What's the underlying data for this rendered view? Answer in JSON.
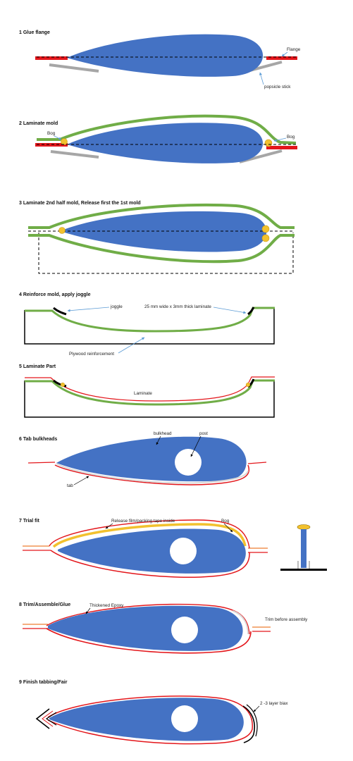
{
  "colors": {
    "foil": "#4472C4",
    "mold": "#70AD47",
    "flange": "#E3161B",
    "laminate": "#E3161B",
    "stick": "#A6A6A6",
    "bog": "#F2C12E",
    "bog_edge": "#C89A10",
    "arrow": "#5B9BD5",
    "line": "#000000",
    "orange": "#ED7D31"
  },
  "steps": [
    {
      "title": "1 Glue flange",
      "labels": {
        "flange": "Flange",
        "stick": "popsicle stick"
      }
    },
    {
      "title": "2 Laminate mold",
      "labels": {
        "bog_left": "Bog",
        "bog_right": "Bog"
      }
    },
    {
      "title": "3 Laminate 2nd half mold, Release first the 1st mold"
    },
    {
      "title": "4 Reinforce mold, apply joggle",
      "labels": {
        "joggle": "joggle",
        "laminate": "25 mm wide x 3mm thick laminate",
        "plywood": "Plywood reinforcement"
      }
    },
    {
      "title": "5 Laminate Part",
      "labels": {
        "laminate": "Laminate"
      }
    },
    {
      "title": "6 Tab bulkheads",
      "labels": {
        "bulkhead": "bulkhead",
        "post": "post",
        "tab": "tab"
      }
    },
    {
      "title": "7 Trial fit",
      "labels": {
        "release": "Release film/packing tape inside",
        "bog": "Bog"
      }
    },
    {
      "title": "8 Trim/Assemble/Glue",
      "labels": {
        "epoxy": "Thickened Epoxy",
        "trim": "Trim before assembly"
      }
    },
    {
      "title": "9 Finish tabbing/Fair",
      "labels": {
        "biax": "2 -3 layer biax"
      }
    }
  ]
}
